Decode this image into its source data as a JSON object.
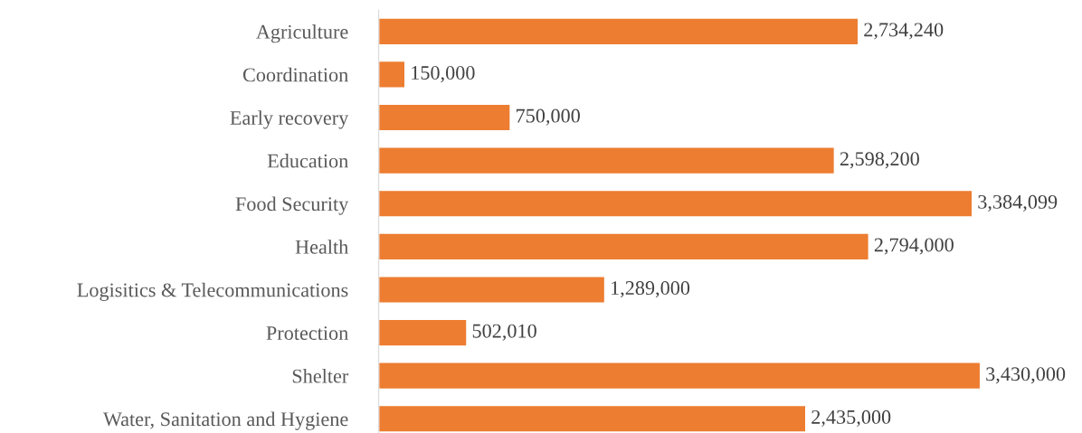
{
  "chart_data": {
    "type": "bar",
    "orientation": "horizontal",
    "categories": [
      "Agriculture",
      "Coordination",
      "Early recovery",
      "Education",
      "Food Security",
      "Health",
      "Logisitics & Telecommunications",
      "Protection",
      "Shelter",
      "Water, Sanitation and Hygiene"
    ],
    "values": [
      2734240,
      150000,
      750000,
      2598200,
      3384099,
      2794000,
      1289000,
      502010,
      3430000,
      2435000
    ],
    "color": "#ed7d31",
    "value_labels": [
      "2,734,240",
      "150,000",
      "750,000",
      "2,598,200",
      "3,384,099",
      "2,794,000",
      "1,289,000",
      "502,010",
      "3,430,000",
      "2,435,000"
    ],
    "tick_labels": "y",
    "grid": false,
    "legend": false
  }
}
